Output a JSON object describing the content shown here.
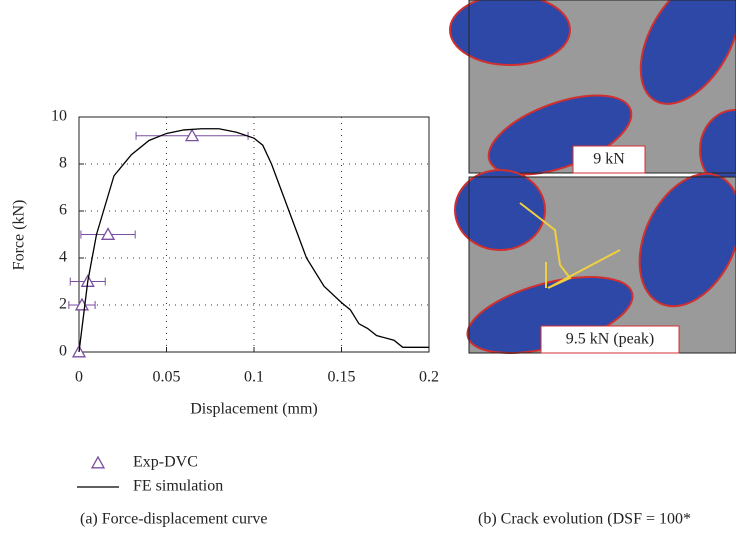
{
  "chart_data": {
    "type": "line",
    "xlabel": "Displacement (mm)",
    "ylabel": "Force (kN)",
    "xlim": [
      0,
      0.2
    ],
    "ylim": [
      0,
      10
    ],
    "xticks": [
      0,
      0.05,
      0.1,
      0.15,
      0.2
    ],
    "yticks": [
      0,
      2,
      4,
      6,
      8,
      10
    ],
    "grid": true,
    "legend": "below",
    "series": [
      {
        "name": "Exp-DVC",
        "color": "#7b4fa0",
        "marker": "triangle",
        "x": [
          0,
          0.0017,
          0.005,
          0.0166,
          0.0646
        ],
        "x_errors": [
          0,
          0.0075,
          0.01,
          0.0155,
          0.032
        ],
        "values": [
          0,
          2,
          3,
          5,
          9.2
        ]
      },
      {
        "name": "FE simulation",
        "color": "#000000",
        "marker": "none",
        "x": [
          0,
          0.005,
          0.01,
          0.02,
          0.03,
          0.04,
          0.05,
          0.06,
          0.07,
          0.08,
          0.09,
          0.1,
          0.105,
          0.11,
          0.12,
          0.13,
          0.14,
          0.15,
          0.155,
          0.16,
          0.165,
          0.17,
          0.18,
          0.185,
          0.2
        ],
        "values": [
          0,
          3,
          5,
          7.5,
          8.4,
          9,
          9.3,
          9.45,
          9.5,
          9.5,
          9.35,
          9.1,
          8.8,
          8,
          6,
          4,
          2.8,
          2.1,
          1.8,
          1.2,
          1,
          0.7,
          0.5,
          0.2,
          0.2
        ]
      }
    ]
  },
  "panels": [
    {
      "label": "9 kN"
    },
    {
      "label": "9.5 kN (peak)"
    }
  ],
  "captions": [
    "(a) Force-displacement curve",
    "(b) Crack evolution (DSF = 100*"
  ]
}
